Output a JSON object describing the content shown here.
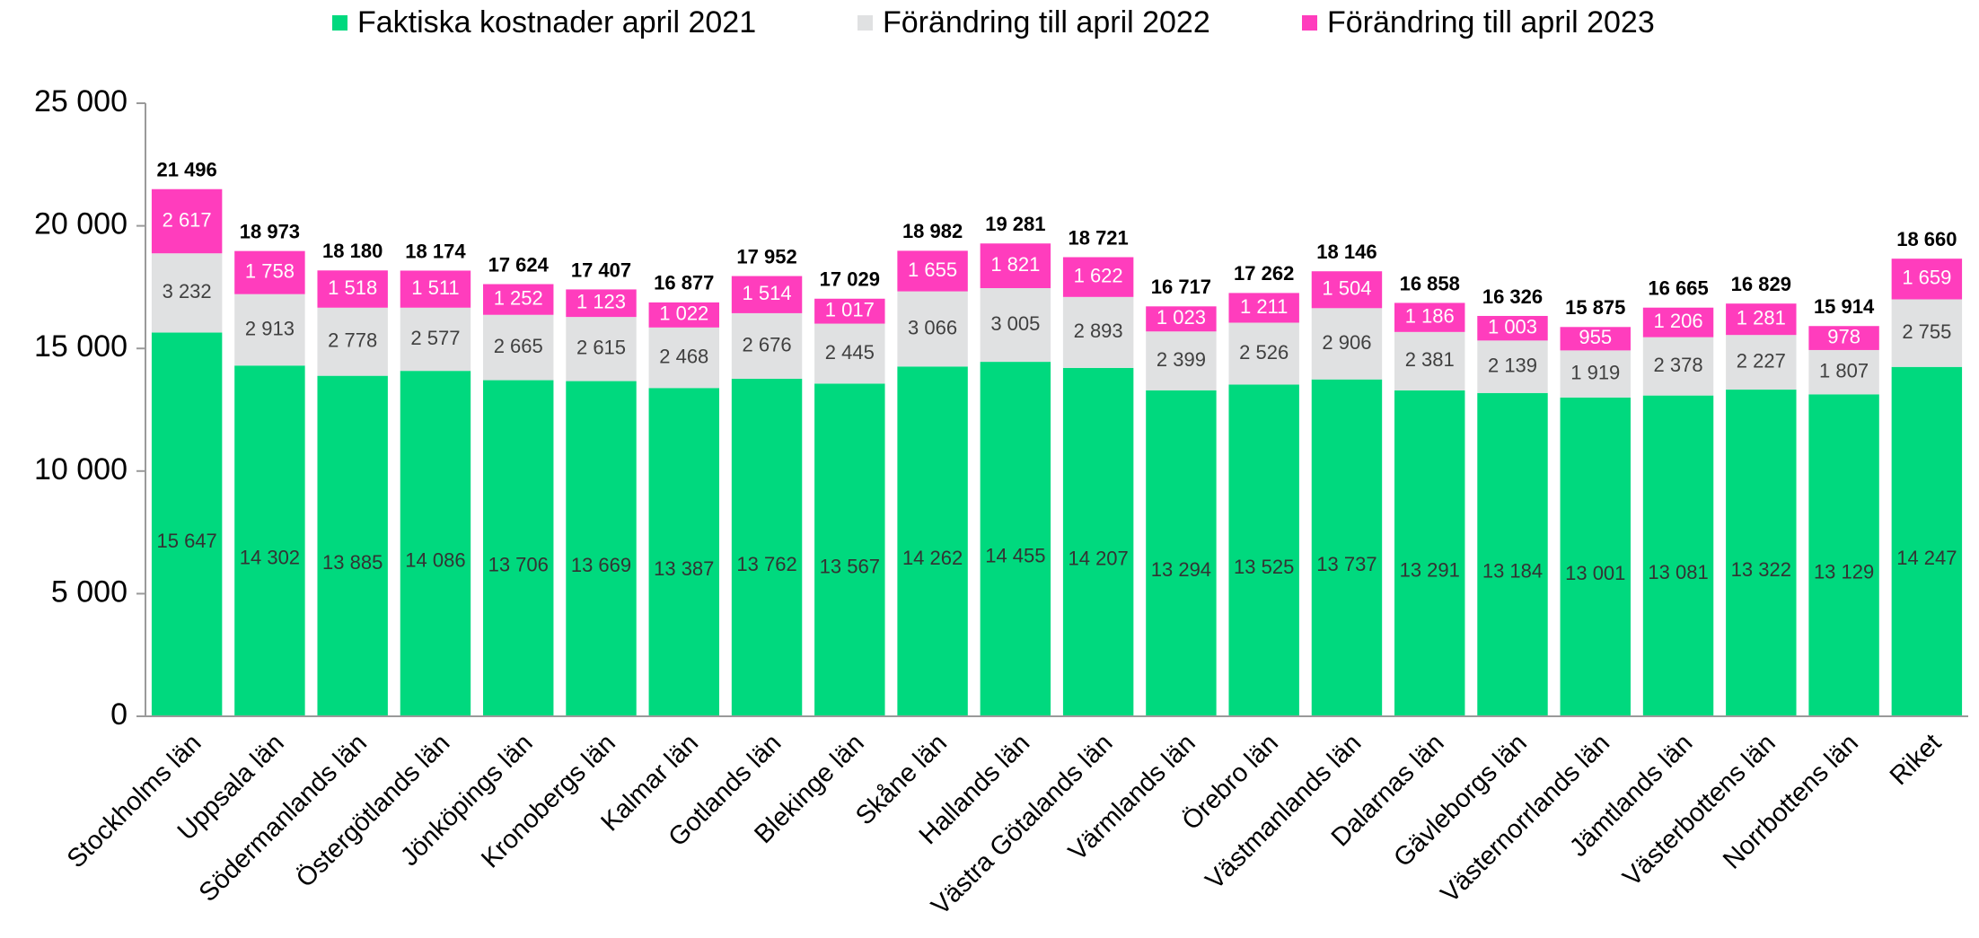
{
  "chart_data": {
    "type": "stacked_bar",
    "categories": [
      "Stockholms län",
      "Uppsala län",
      "Södermanlands län",
      "Östergötlands län",
      "Jönköpings län",
      "Kronobergs län",
      "Kalmar län",
      "Gotlands län",
      "Blekinge län",
      "Skåne län",
      "Hallands län",
      "Västra Götalands län",
      "Värmlands län",
      "Örebro län",
      "Västmanlands län",
      "Dalarnas län",
      "Gävleborgs län",
      "Västernorrlands län",
      "Jämtlands län",
      "Västerbottens län",
      "Norrbottens län",
      "Riket"
    ],
    "series": [
      {
        "name": "Faktiska kostnader april 2021",
        "color": "#00d97e",
        "label_color": "#333333",
        "values": [
          15647,
          14302,
          13885,
          14086,
          13706,
          13669,
          13387,
          13762,
          13567,
          14262,
          14455,
          14207,
          13294,
          13525,
          13737,
          13291,
          13184,
          13001,
          13081,
          13322,
          13129,
          14247
        ],
        "value_labels": [
          "15 647",
          "14 302",
          "13 885",
          "14 086",
          "13 706",
          "13 669",
          "13 387",
          "13 762",
          "13 567",
          "14 262",
          "14 455",
          "14 207",
          "13 294",
          "13 525",
          "13 737",
          "13 291",
          "13 184",
          "13 001",
          "13 081",
          "13 322",
          "13 129",
          "14 247"
        ]
      },
      {
        "name": "Förändring till april 2022",
        "color": "#e0e1e2",
        "label_color": "#404040",
        "values": [
          3232,
          2913,
          2778,
          2577,
          2665,
          2615,
          2468,
          2676,
          2445,
          3066,
          3005,
          2893,
          2399,
          2526,
          2906,
          2381,
          2139,
          1919,
          2378,
          2227,
          1807,
          2755
        ],
        "value_labels": [
          "3 232",
          "2 913",
          "2 778",
          "2 577",
          "2 665",
          "2 615",
          "2 468",
          "2 676",
          "2 445",
          "3 066",
          "3 005",
          "2 893",
          "2 399",
          "2 526",
          "2 906",
          "2 381",
          "2 139",
          "1 919",
          "2 378",
          "2 227",
          "1 807",
          "2 755"
        ]
      },
      {
        "name": "Förändring till april 2023",
        "color": "#ff3dbd",
        "label_color": "#ffffff",
        "values": [
          2617,
          1758,
          1518,
          1511,
          1252,
          1123,
          1022,
          1514,
          1017,
          1655,
          1821,
          1622,
          1023,
          1211,
          1504,
          1186,
          1003,
          955,
          1206,
          1281,
          978,
          1659
        ],
        "value_labels": [
          "2 617",
          "1 758",
          "1 518",
          "1 511",
          "1 252",
          "1 123",
          "1 022",
          "1 514",
          "1 017",
          "1 655",
          "1 821",
          "1 622",
          "1 023",
          "1 211",
          "1 504",
          "1 186",
          "1 003",
          "955",
          "1 206",
          "1 281",
          "978",
          "1 659"
        ]
      }
    ],
    "totals": [
      21496,
      18973,
      18180,
      18174,
      17624,
      17407,
      16877,
      17952,
      17029,
      18982,
      19281,
      18721,
      16717,
      17262,
      18146,
      16858,
      16326,
      15875,
      16665,
      16829,
      15914,
      18660
    ],
    "total_labels": [
      "21 496",
      "18 973",
      "18 180",
      "18 174",
      "17 624",
      "17 407",
      "16 877",
      "17 952",
      "17 029",
      "18 982",
      "19 281",
      "18 721",
      "16 717",
      "17 262",
      "18 146",
      "16 858",
      "16 326",
      "15 875",
      "16 665",
      "16 829",
      "15 914",
      "18 660"
    ],
    "ylim": [
      0,
      25000
    ],
    "yticks": [
      0,
      {
        "value": 5000,
        "label": "5 000"
      },
      {
        "value": 10000,
        "label": "10 000"
      },
      {
        "value": 15000,
        "label": "15 000"
      },
      {
        "value": 20000,
        "label": "20 000"
      },
      {
        "value": 25000,
        "label": "25 000"
      }
    ],
    "grid": false,
    "legend": "top"
  }
}
